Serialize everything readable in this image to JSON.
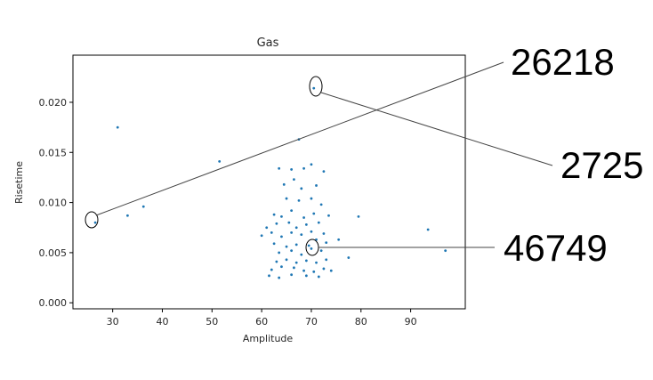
{
  "chart_data": {
    "type": "scatter",
    "title": "Gas",
    "xlabel": "Amplitude",
    "ylabel": "Risetime",
    "xlim": [
      22,
      101
    ],
    "ylim": [
      -0.0006,
      0.0247
    ],
    "xticks": [
      "30",
      "40",
      "50",
      "60",
      "70",
      "80",
      "90"
    ],
    "yticks": [
      "0.000",
      "0.005",
      "0.010",
      "0.015",
      "0.020"
    ],
    "grid": false,
    "marker_color": "#1f77b4",
    "points": [
      [
        26.5,
        0.008
      ],
      [
        31.0,
        0.0175
      ],
      [
        33.0,
        0.0087
      ],
      [
        36.2,
        0.0096
      ],
      [
        51.5,
        0.0141
      ],
      [
        67.5,
        0.0163
      ],
      [
        70.5,
        0.0214
      ],
      [
        63.5,
        0.0134
      ],
      [
        66.0,
        0.0133
      ],
      [
        68.5,
        0.0134
      ],
      [
        70.0,
        0.0138
      ],
      [
        72.5,
        0.0131
      ],
      [
        64.5,
        0.0118
      ],
      [
        66.5,
        0.0123
      ],
      [
        68.0,
        0.0114
      ],
      [
        71.0,
        0.0117
      ],
      [
        65.0,
        0.0104
      ],
      [
        67.5,
        0.0102
      ],
      [
        70.0,
        0.0104
      ],
      [
        72.0,
        0.0098
      ],
      [
        62.5,
        0.0088
      ],
      [
        64.0,
        0.0086
      ],
      [
        66.0,
        0.0092
      ],
      [
        68.5,
        0.0085
      ],
      [
        70.5,
        0.0089
      ],
      [
        73.5,
        0.0087
      ],
      [
        79.5,
        0.0086
      ],
      [
        61.0,
        0.0075
      ],
      [
        63.0,
        0.0079
      ],
      [
        65.5,
        0.008
      ],
      [
        67.0,
        0.0075
      ],
      [
        69.0,
        0.0078
      ],
      [
        71.5,
        0.008
      ],
      [
        60.0,
        0.0067
      ],
      [
        62.0,
        0.007
      ],
      [
        64.0,
        0.0066
      ],
      [
        66.0,
        0.007
      ],
      [
        68.0,
        0.0068
      ],
      [
        70.0,
        0.0071
      ],
      [
        72.5,
        0.0069
      ],
      [
        93.5,
        0.0073
      ],
      [
        62.5,
        0.0059
      ],
      [
        65.0,
        0.0056
      ],
      [
        67.0,
        0.0058
      ],
      [
        69.5,
        0.0057
      ],
      [
        71.0,
        0.0063
      ],
      [
        73.0,
        0.006
      ],
      [
        75.5,
        0.0063
      ],
      [
        63.5,
        0.005
      ],
      [
        66.0,
        0.0052
      ],
      [
        68.0,
        0.0048
      ],
      [
        70.0,
        0.0054
      ],
      [
        72.0,
        0.0052
      ],
      [
        77.5,
        0.0045
      ],
      [
        97.0,
        0.0052
      ],
      [
        63.0,
        0.0041
      ],
      [
        65.0,
        0.0043
      ],
      [
        67.0,
        0.004
      ],
      [
        69.0,
        0.0042
      ],
      [
        71.0,
        0.004
      ],
      [
        73.0,
        0.0043
      ],
      [
        62.0,
        0.0033
      ],
      [
        64.0,
        0.0036
      ],
      [
        66.5,
        0.0035
      ],
      [
        68.5,
        0.0032
      ],
      [
        70.5,
        0.0031
      ],
      [
        72.5,
        0.0034
      ],
      [
        74.0,
        0.0032
      ],
      [
        61.5,
        0.0027
      ],
      [
        63.5,
        0.0025
      ],
      [
        66.0,
        0.0028
      ],
      [
        69.0,
        0.0027
      ],
      [
        71.5,
        0.0026
      ]
    ]
  },
  "callouts": [
    {
      "label": "26218",
      "x": 26.5,
      "y": 0.008
    },
    {
      "label": "2725",
      "x": 70.5,
      "y": 0.0214
    },
    {
      "label": "46749",
      "x": 69.8,
      "y": 0.0052
    }
  ]
}
